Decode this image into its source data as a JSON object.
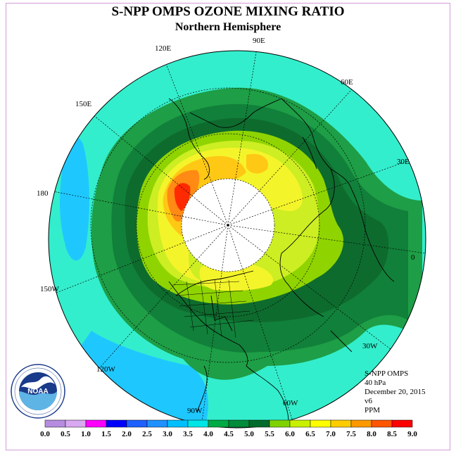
{
  "title": "S-NPP OMPS OZONE MIXING RATIO",
  "subtitle": "Northern Hemisphere",
  "longitude_labels": [
    "90E",
    "60E",
    "30E",
    "0",
    "30W",
    "60W",
    "90W",
    "120W",
    "150W",
    "180",
    "150E",
    "120E"
  ],
  "info": {
    "instrument": "S-NPP OMPS",
    "level": "40 hPa",
    "date": "December 20, 2015",
    "version": "v6",
    "units": "PPM"
  },
  "colorbar": {
    "ticks": [
      "0.0",
      "0.5",
      "1.0",
      "1.5",
      "2.0",
      "2.5",
      "3.0",
      "3.5",
      "4.0",
      "4.5",
      "5.0",
      "5.5",
      "6.0",
      "6.5",
      "7.0",
      "7.5",
      "8.0",
      "8.5",
      "9.0"
    ],
    "colors": [
      "#b58ce0",
      "#d8a8f0",
      "#ff00ff",
      "#0000ff",
      "#1e5fff",
      "#1e90ff",
      "#00bfff",
      "#00e5e5",
      "#00aa44",
      "#008c3a",
      "#006b2a",
      "#7fd200",
      "#c8f000",
      "#ffff00",
      "#ffcc00",
      "#ff9900",
      "#ff5500",
      "#ff0000",
      "#8b4513"
    ]
  },
  "logo": {
    "text": "NOAA",
    "ring_text": "NATIONAL OCEANIC AND ATMOSPHERIC ADMINISTRATION · U.S. DEPARTMENT OF COMMERCE"
  },
  "regions": [
    {
      "name": "background",
      "color": "#33eecc"
    },
    {
      "name": "low-3.0",
      "color": "#1ec8ff"
    },
    {
      "name": "4.0-4.5",
      "color": "#1e9e46"
    },
    {
      "name": "4.5-5.0",
      "color": "#11803a"
    },
    {
      "name": "5.0-5.5",
      "color": "#0e6b2e"
    },
    {
      "name": "5.5-6.0",
      "color": "#8fd400"
    },
    {
      "name": "6.0-6.5",
      "color": "#ccee22"
    },
    {
      "name": "6.5-7.0",
      "color": "#f4f42a"
    },
    {
      "name": "7.0-7.5",
      "color": "#ffc814"
    },
    {
      "name": "7.5-8.0",
      "color": "#ff8a14"
    },
    {
      "name": "8.0-8.5",
      "color": "#ff2a00"
    },
    {
      "name": "missing",
      "color": "#ffffff"
    }
  ]
}
